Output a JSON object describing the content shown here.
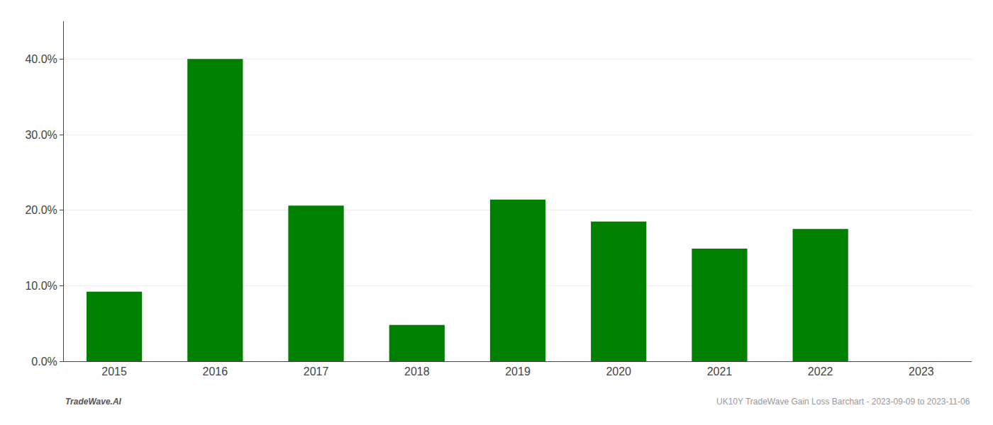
{
  "chart_data": {
    "type": "bar",
    "categories": [
      "2015",
      "2016",
      "2017",
      "2018",
      "2019",
      "2020",
      "2021",
      "2022",
      "2023"
    ],
    "values": [
      0.092,
      0.4,
      0.206,
      0.048,
      0.214,
      0.185,
      0.149,
      0.175,
      0.0
    ],
    "color": "#008000",
    "ylim": [
      0,
      0.45
    ],
    "yticks": [
      {
        "value": 0.0,
        "label": "0.0%"
      },
      {
        "value": 0.1,
        "label": "10.0%"
      },
      {
        "value": 0.2,
        "label": "20.0%"
      },
      {
        "value": 0.3,
        "label": "30.0%"
      },
      {
        "value": 0.4,
        "label": "40.0%"
      }
    ],
    "grid": true,
    "annotations": [
      "TradeWave.AI",
      "UK10Y TradeWave Gain Loss Barchart - 2023-09-09 to 2023-11-06"
    ]
  }
}
